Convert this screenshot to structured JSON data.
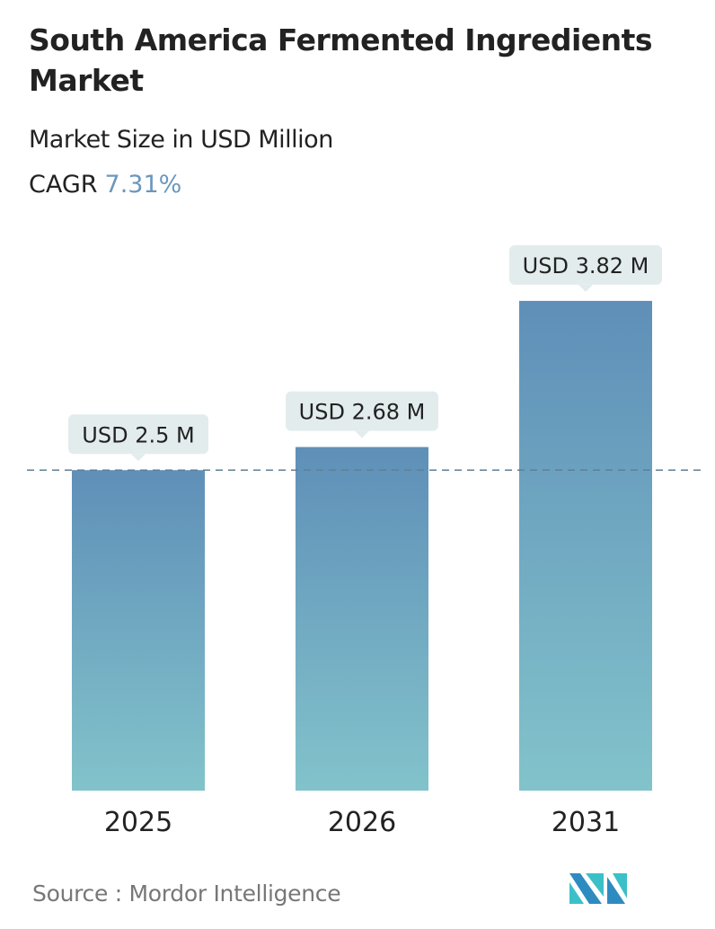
{
  "title": "South America Fermented Ingredients Market",
  "subtitle": "Market Size in USD Million",
  "cagr_label": "CAGR",
  "cagr_value": "7.31%",
  "source": "Source :  Mordor Intelligence",
  "colors": {
    "bar_top": "#5f8fb8",
    "bar_bottom": "#82c3cb",
    "cagr": "#6a97bd",
    "label_bg": "#e3eced"
  },
  "chart_data": {
    "type": "bar",
    "categories": [
      "2025",
      "2026",
      "2031"
    ],
    "values": [
      2.5,
      2.68,
      3.82
    ],
    "data_labels": [
      "USD 2.5 M",
      "USD 2.68 M",
      "USD 3.82 M"
    ],
    "reference_line": 2.5,
    "grid": false
  }
}
